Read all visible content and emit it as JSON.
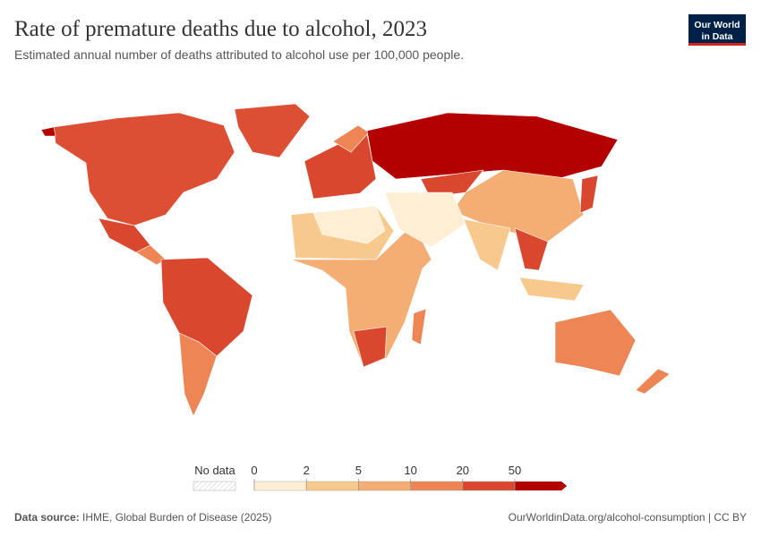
{
  "header": {
    "title": "Rate of premature deaths due to alcohol, 2023",
    "subtitle": "Estimated annual number of deaths attributed to alcohol use per 100,000 people.",
    "logo": [
      "Our World",
      "in Data"
    ]
  },
  "legend": {
    "no_data": "No data",
    "ticks": [
      0,
      2,
      5,
      10,
      20,
      50
    ],
    "colors": [
      "#fdeed4",
      "#f8c98d",
      "#f4ae74",
      "#ee8555",
      "#d9472f",
      "#b30000"
    ]
  },
  "footer": {
    "source_label": "Data source:",
    "source": "IHME, Global Burden of Disease (2025)",
    "url": "OurWorldinData.org/alcohol-consumption | CC BY"
  }
}
